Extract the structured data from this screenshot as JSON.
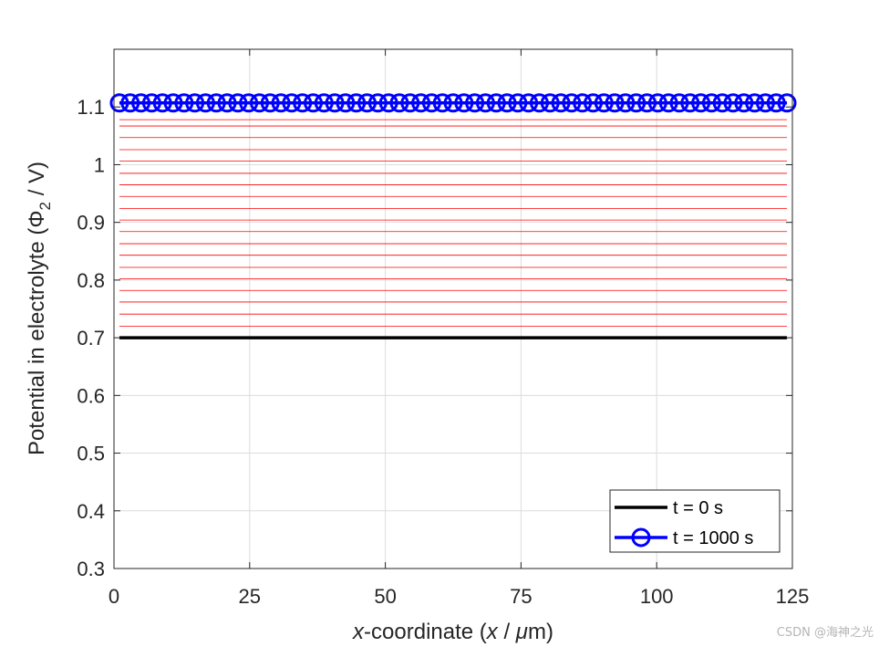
{
  "chart_data": {
    "type": "line",
    "xlabel_parts": {
      "italic_x": "x",
      "mid": "-coordinate (",
      "italic_x2": "x",
      "slash": " / ",
      "mu": "μ",
      "unit": "m)"
    },
    "ylabel_parts": {
      "pre": "Potential in electrolyte (",
      "phi": "Φ",
      "sub": "2",
      "post": " / V)"
    },
    "xlim": [
      0,
      125
    ],
    "ylim": [
      0.3,
      1.2
    ],
    "x_ticks": [
      0,
      25,
      50,
      75,
      100,
      125
    ],
    "x_tick_labels": [
      "0",
      "25",
      "50",
      "75",
      "100",
      "125"
    ],
    "y_ticks": [
      0.3,
      0.4,
      0.5,
      0.6,
      0.7,
      0.8,
      0.9,
      1.0,
      1.1
    ],
    "y_tick_labels": [
      "0.3",
      "0.4",
      "0.5",
      "0.6",
      "0.7",
      "0.8",
      "0.9",
      "1",
      "1.1"
    ],
    "grid": true,
    "legend_location": "bottom-right",
    "x_range": [
      1,
      124
    ],
    "series": [
      {
        "name": "t = 0 s",
        "color": "#000000",
        "style": "solid",
        "marker": "none",
        "value": 0.7
      },
      {
        "name": "t = 1000 s",
        "color": "#0000ff",
        "style": "solid",
        "marker": "circle",
        "value": 1.107
      }
    ],
    "intermediate_series": {
      "color": "#ff0000",
      "values": [
        0.72,
        0.741,
        0.762,
        0.782,
        0.802,
        0.822,
        0.843,
        0.863,
        0.884,
        0.904,
        0.924,
        0.945,
        0.965,
        0.985,
        1.006,
        1.026,
        1.047,
        1.067,
        1.078
      ]
    },
    "marker_count": 63
  },
  "watermark": "CSDN @海神之光"
}
